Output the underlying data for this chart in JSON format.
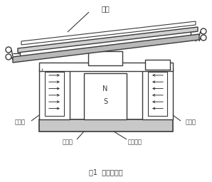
{
  "title": "图1  原理示意图",
  "label_衔铁": "衔铁",
  "label_左边柱": "左边柱",
  "label_右边柱": "右边柱",
  "label_磁轭板": "磁轭板",
  "label_永久磁铁": "永久磁铁",
  "label_N": "N",
  "label_S": "S",
  "bg_color": "#ffffff",
  "lc": "#3a3a3a",
  "gc": "#707070",
  "figsize": [
    2.98,
    2.56
  ],
  "dpi": 100
}
